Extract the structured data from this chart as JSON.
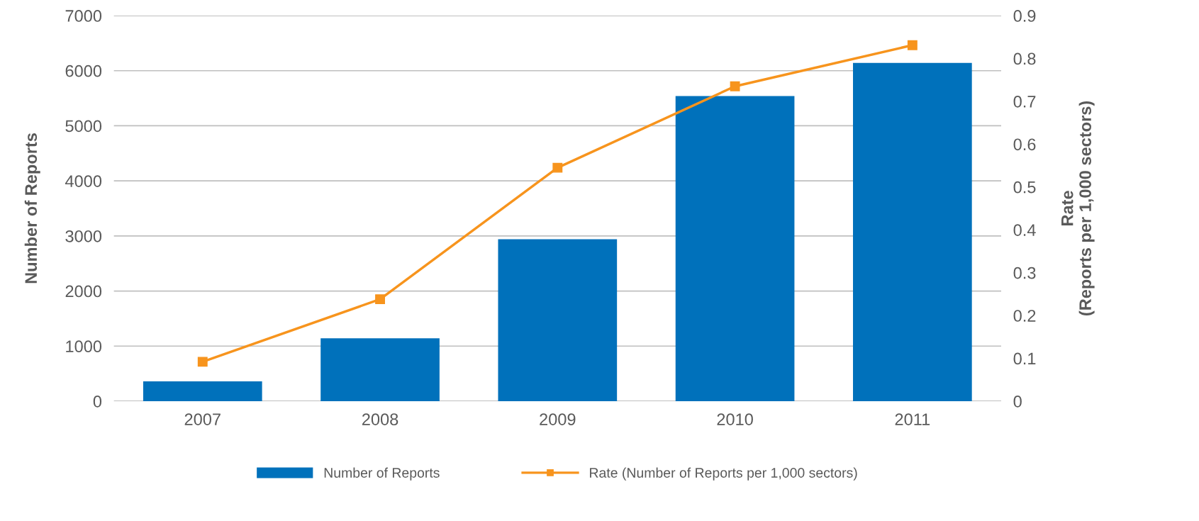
{
  "chart_data": {
    "type": "bar",
    "categories": [
      "2007",
      "2008",
      "2009",
      "2010",
      "2011"
    ],
    "series": [
      {
        "name": "Number of Reports",
        "color": "#0071bb",
        "values": [
          360,
          1140,
          2940,
          5540,
          6140
        ]
      },
      {
        "name": "Rate (Number of Reports per 1,000 sectors)",
        "type": "line",
        "axis": "y2",
        "color": "#f7941d",
        "marker": "square",
        "values": [
          0.092,
          0.238,
          0.545,
          0.735,
          0.831
        ]
      }
    ],
    "ylabel": "Number of Reports",
    "y2label": "Rate\n(Reports per 1,000 sectors)",
    "ylim": [
      0,
      7000
    ],
    "yticks": [
      0,
      1000,
      2000,
      3000,
      4000,
      5000,
      6000,
      7000
    ],
    "y2lim": [
      0,
      0.9
    ],
    "y2ticks": [
      0,
      0.1,
      0.2,
      0.3,
      0.4,
      0.5,
      0.6,
      0.7,
      0.8,
      0.9
    ],
    "grid": "y",
    "legend": "bottom"
  }
}
